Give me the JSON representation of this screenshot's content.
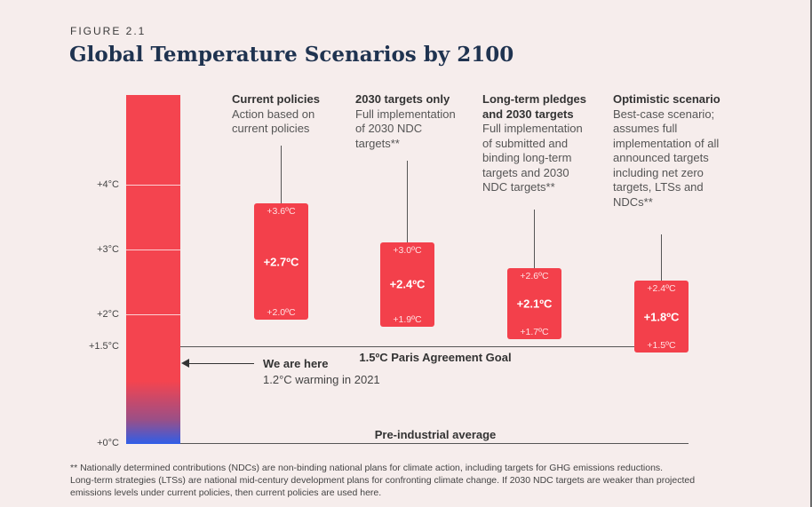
{
  "figure_label": "FIGURE 2.1",
  "chart_data": {
    "type": "bar",
    "title": "Global Temperature Scenarios by 2100",
    "ylim": [
      0,
      4.8
    ],
    "y_ticks": [
      {
        "value": 4,
        "label": "+4°C"
      },
      {
        "value": 3,
        "label": "+3°C"
      },
      {
        "value": 2,
        "label": "+2°C"
      },
      {
        "value": 1.5,
        "label": "+1.5°C"
      },
      {
        "value": 0,
        "label": "+0°C"
      }
    ],
    "reference_lines": [
      {
        "value": 1.5,
        "label": "1.5ºC Paris Agreement Goal"
      },
      {
        "value": 0,
        "label": "Pre-industrial average"
      }
    ],
    "current": {
      "value": 1.2,
      "title": "We are here",
      "subtitle": "1.2°C warming in 2021"
    },
    "series": [
      {
        "name": "Current policies",
        "description": "Action based on current policies",
        "low": 2.0,
        "mid": 2.7,
        "high": 3.6,
        "low_label": "+2.0ºC",
        "mid_label": "+2.7ºC",
        "high_label": "+3.6ºC"
      },
      {
        "name": "2030 targets only",
        "description": "Full implementation of 2030 NDC targets**",
        "low": 1.9,
        "mid": 2.4,
        "high": 3.0,
        "low_label": "+1.9ºC",
        "mid_label": "+2.4ºC",
        "high_label": "+3.0ºC"
      },
      {
        "name": "Long-term pledges and 2030 targets",
        "description": "Full implementation of submitted and binding long-term targets and 2030 NDC targets**",
        "low": 1.7,
        "mid": 2.1,
        "high": 2.6,
        "low_label": "+1.7ºC",
        "mid_label": "+2.1ºC",
        "high_label": "+2.6ºC"
      },
      {
        "name": "Optimistic scenario",
        "description": "Best-case scenario; assumes full implementation of all announced targets including net zero targets, LTSs and NDCs**",
        "low": 1.5,
        "mid": 1.8,
        "high": 2.4,
        "low_label": "+1.5ºC",
        "mid_label": "+1.8ºC",
        "high_label": "+2.4ºC"
      }
    ]
  },
  "footnote": {
    "line1": "** Nationally determined contributions (NDCs) are non-binding national plans for climate action, including targets for GHG emissions reductions.",
    "line2": "Long-term strategies (LTSs) are national mid-century development plans for confronting climate change. If 2030 NDC targets are weaker than projected",
    "line3": "emissions levels under current policies, then current policies are used here."
  },
  "colors": {
    "accent": "#f3404b",
    "title": "#1f3350",
    "background": "#f6edec",
    "baseline_blue": "#2f5ee8"
  }
}
